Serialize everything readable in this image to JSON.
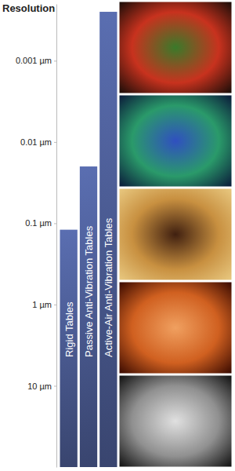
{
  "chart_data": {
    "type": "bar",
    "title": "Resolution",
    "categories": [
      "Rigid Tables",
      "Passive Anti-Vibration Tables",
      "Active-Air Anti-Vibration Tables"
    ],
    "values": [
      0.12,
      0.02,
      0.00025
    ],
    "color": "#46568a",
    "log": "y",
    "ylim": [
      100,
      0.0002
    ],
    "yticks": [
      {
        "value": 0.001,
        "label": "0.001 µm"
      },
      {
        "value": 0.01,
        "label": "0.01 µm"
      },
      {
        "value": 0.1,
        "label": "0.1 µm"
      },
      {
        "value": 1,
        "label": "1 µm"
      },
      {
        "value": 10,
        "label": "10 µm"
      }
    ],
    "grid": false
  }
}
